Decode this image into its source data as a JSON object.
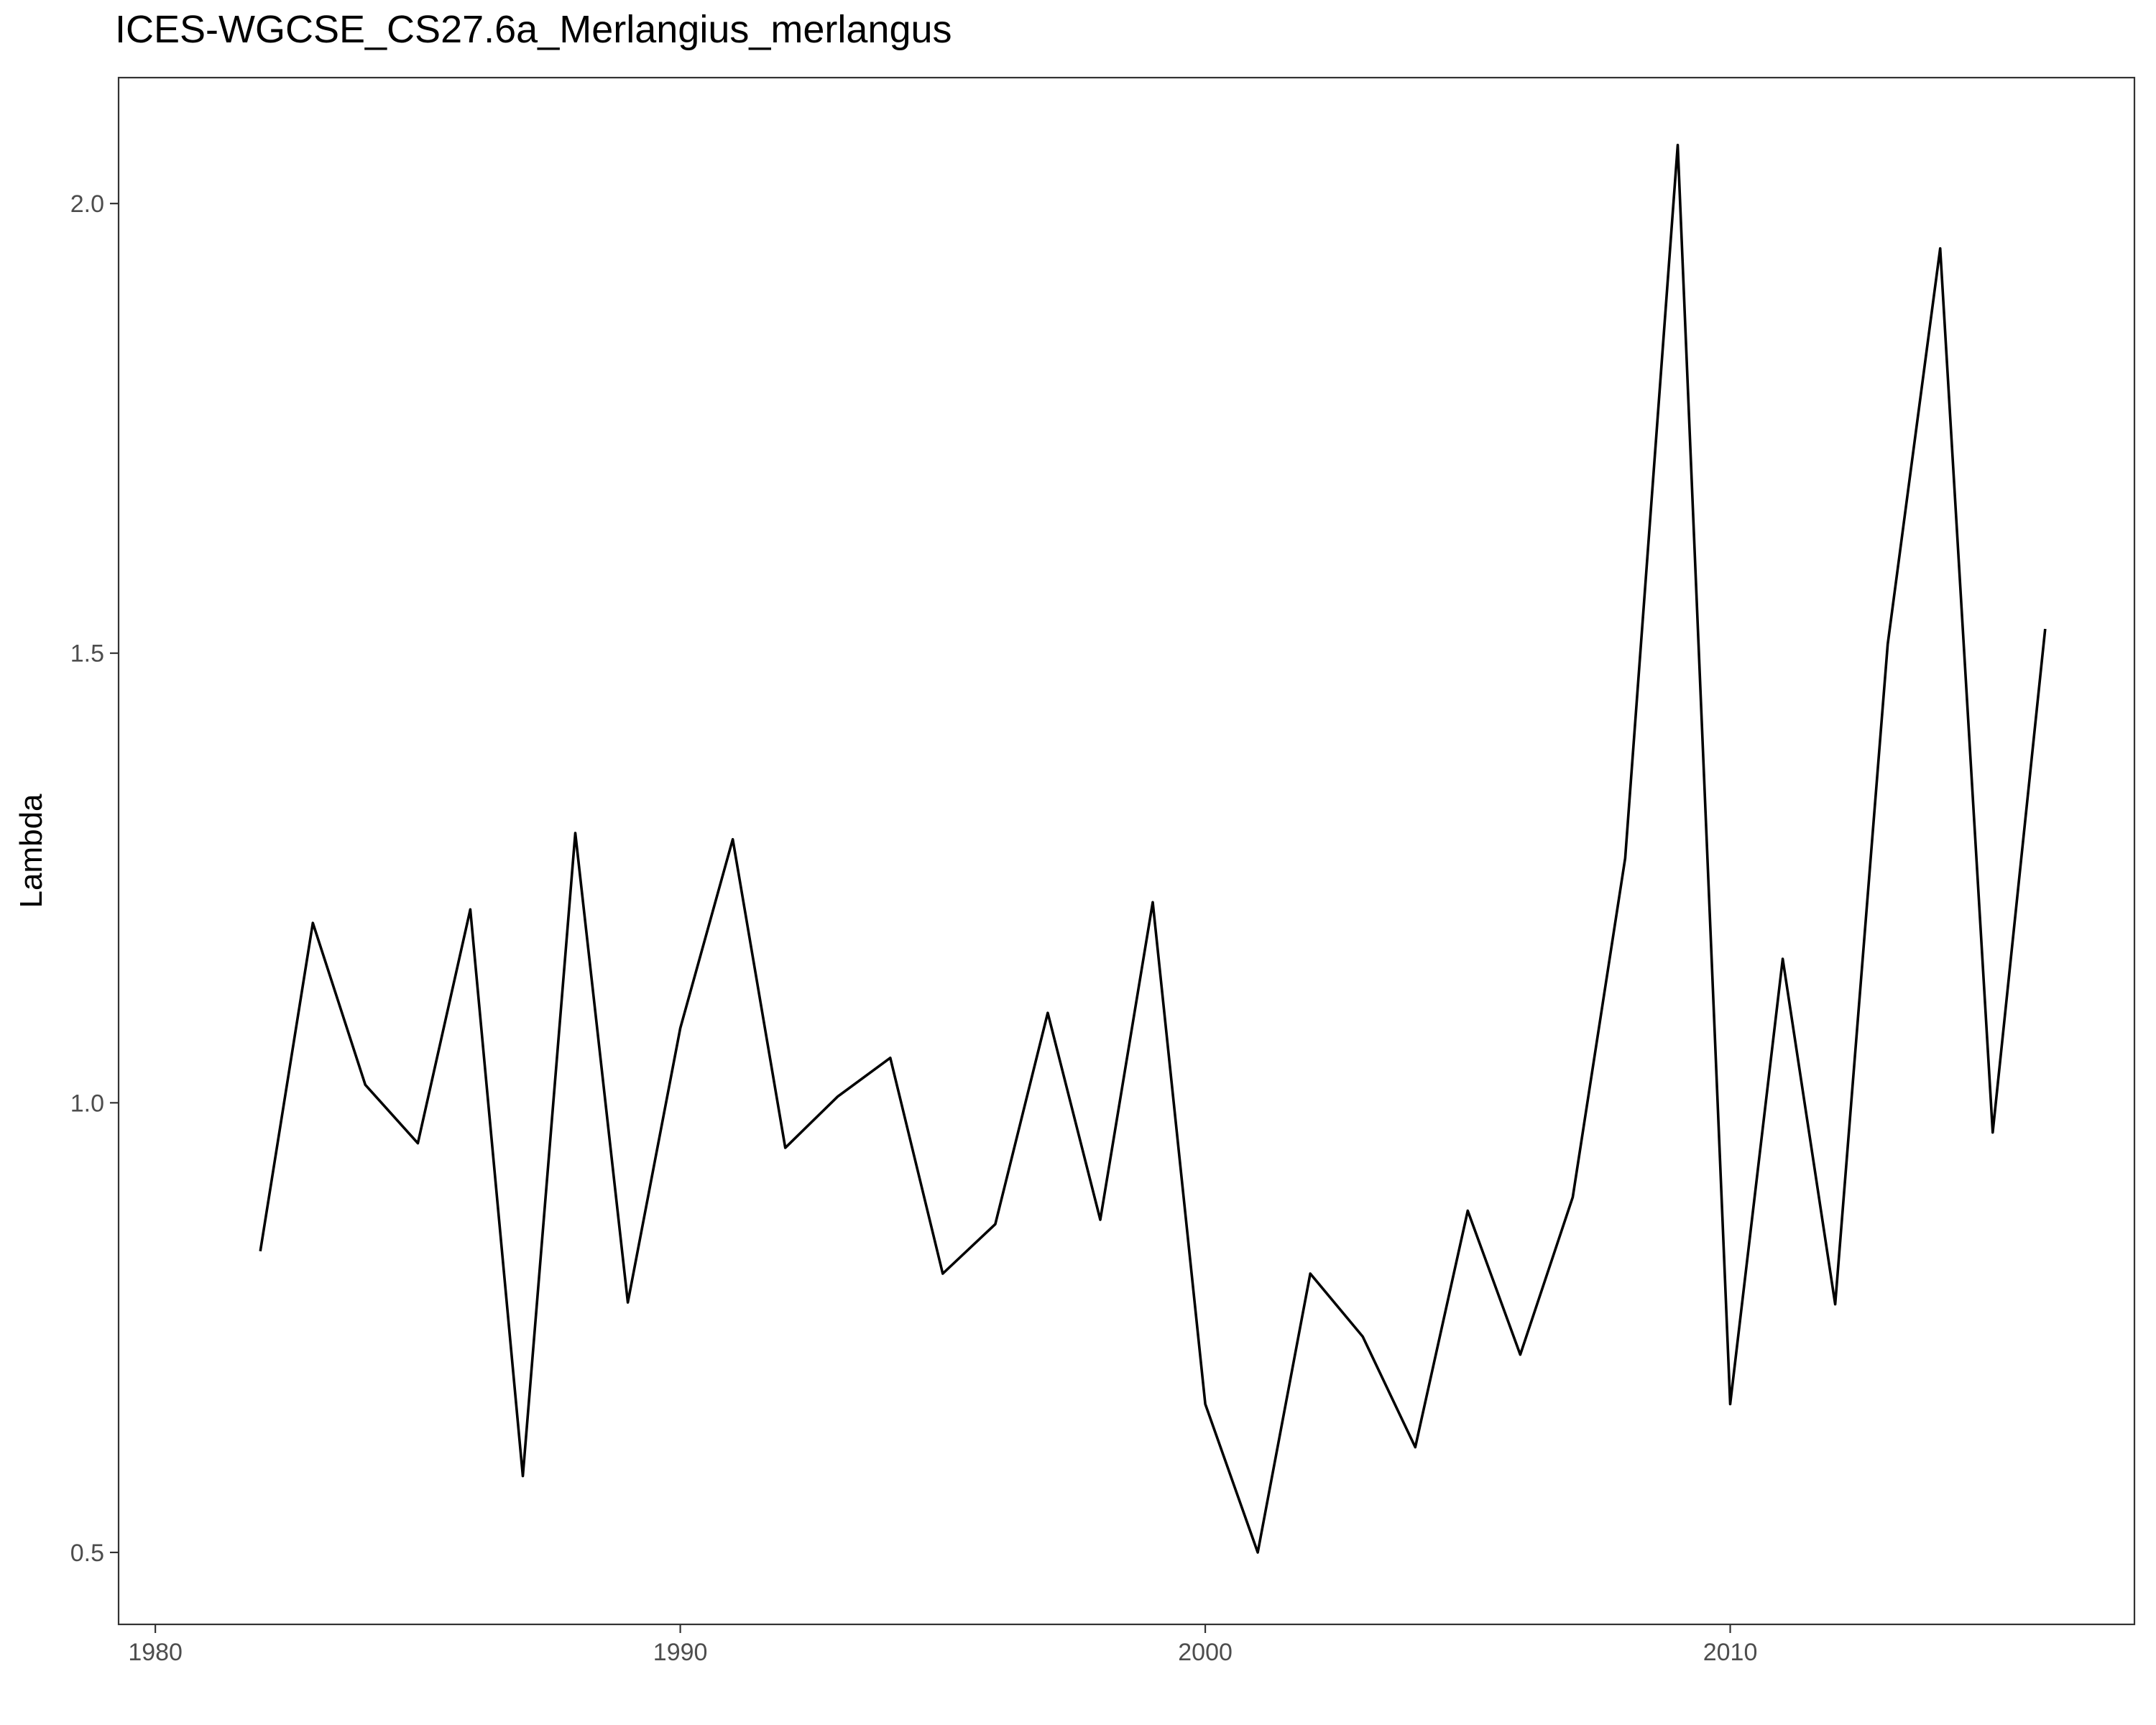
{
  "chart_data": {
    "type": "line",
    "title": "ICES-WGCSE_CS27.6a_Merlangius_merlangus",
    "xlabel": "",
    "ylabel": "Lambda",
    "xlim": [
      1979.3,
      2017.7
    ],
    "ylim": [
      0.42,
      2.14
    ],
    "x_ticks": [
      1980,
      1990,
      2000,
      2010
    ],
    "x_tick_labels": [
      "1980",
      "1990",
      "2000",
      "2010"
    ],
    "y_ticks": [
      0.5,
      1.0,
      1.5,
      2.0
    ],
    "y_tick_labels": [
      "0.5",
      "1.0",
      "1.5",
      "2.0"
    ],
    "grid": false,
    "line_color": "#000000",
    "x": [
      1982,
      1983,
      1984,
      1985,
      1986,
      1987,
      1988,
      1989,
      1990,
      1991,
      1992,
      1993,
      1994,
      1995,
      1996,
      1997,
      1998,
      1999,
      2000,
      2001,
      2002,
      2003,
      2004,
      2005,
      2006,
      2007,
      2008,
      2009,
      2010,
      2011,
      2012,
      2013,
      2014,
      2015,
      2016
    ],
    "values": [
      0.835,
      1.2,
      1.02,
      0.955,
      1.215,
      0.585,
      1.3,
      0.778,
      1.083,
      1.293,
      0.95,
      1.007,
      1.05,
      0.81,
      0.865,
      1.1,
      0.87,
      1.223,
      0.665,
      0.5,
      0.81,
      0.74,
      0.617,
      0.88,
      0.72,
      0.895,
      1.272,
      2.065,
      0.665,
      1.16,
      0.776,
      1.51,
      1.95,
      0.967,
      1.527
    ]
  }
}
